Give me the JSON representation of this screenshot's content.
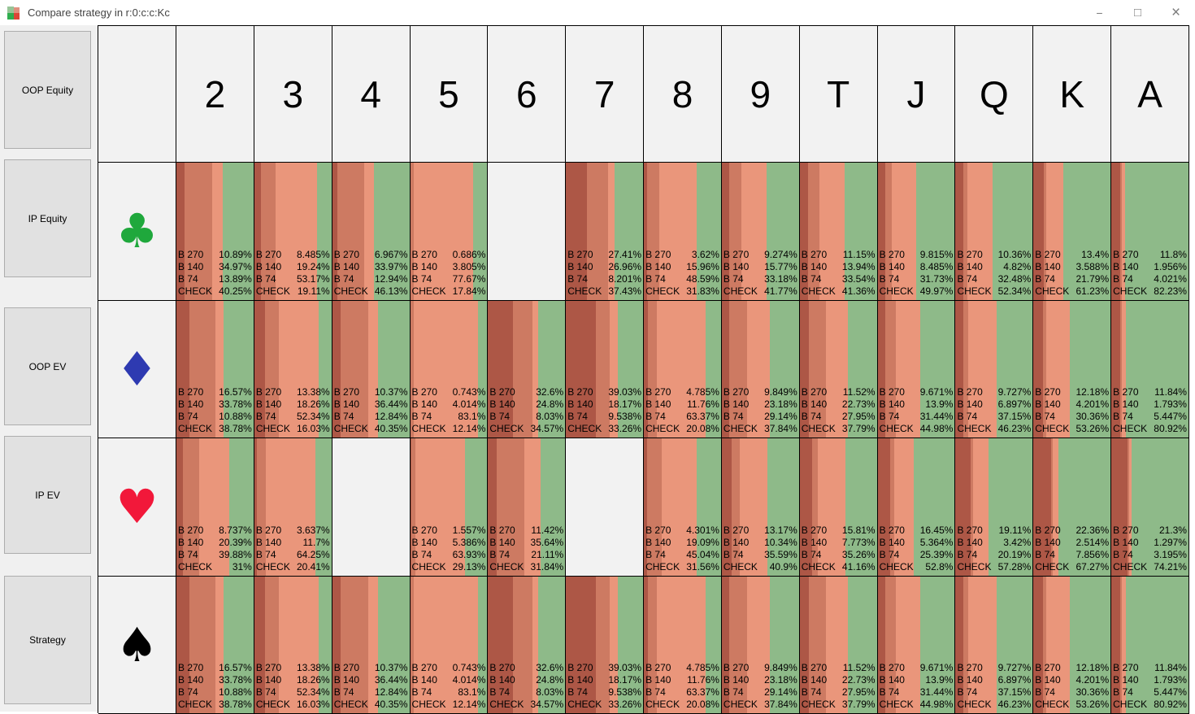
{
  "window": {
    "title": "Compare strategy in r:0:c:c:Kc",
    "controls": {
      "minimize": "−",
      "maximize": "□",
      "close": "×"
    }
  },
  "sidebar": {
    "buttons": [
      "OOP Equity",
      "IP Equity",
      "OOP EV",
      "IP EV",
      "Strategy"
    ]
  },
  "grid": {
    "columns": [
      "2",
      "3",
      "4",
      "5",
      "6",
      "7",
      "8",
      "9",
      "T",
      "J",
      "Q",
      "K",
      "A"
    ],
    "suits": [
      {
        "name": "club",
        "symbol": "♣",
        "color": "#1fa83c"
      },
      {
        "name": "diamond",
        "symbol": "♦",
        "color": "#2e3ab1"
      },
      {
        "name": "heart",
        "symbol": "♥",
        "color": "#f2183a"
      },
      {
        "name": "spade",
        "symbol": "♠",
        "color": "#000000"
      }
    ],
    "actions": [
      {
        "label": "B 270",
        "color": "#ad5746"
      },
      {
        "label": "B 140",
        "color": "#cd7a62"
      },
      {
        "label": "B 74",
        "color": "#ea967b"
      },
      {
        "label": "CHECK",
        "color": "#8eba89"
      }
    ],
    "cells": {
      "club": {
        "2": [
          "10.89%",
          "34.97%",
          "13.89%",
          "40.25%"
        ],
        "3": [
          "8.485%",
          "19.24%",
          "53.17%",
          "19.11%"
        ],
        "4": [
          "6.967%",
          "33.97%",
          "12.94%",
          "46.13%"
        ],
        "5": [
          "0.686%",
          "3.805%",
          "77.67%",
          "17.84%"
        ],
        "6": null,
        "7": [
          "27.41%",
          "26.96%",
          "8.201%",
          "37.43%"
        ],
        "8": [
          "3.62%",
          "15.96%",
          "48.59%",
          "31.83%"
        ],
        "9": [
          "9.274%",
          "15.77%",
          "33.18%",
          "41.77%"
        ],
        "T": [
          "11.15%",
          "13.94%",
          "33.54%",
          "41.36%"
        ],
        "J": [
          "9.815%",
          "8.485%",
          "31.73%",
          "49.97%"
        ],
        "Q": [
          "10.36%",
          "4.82%",
          "32.48%",
          "52.34%"
        ],
        "K": [
          "13.4%",
          "3.588%",
          "21.79%",
          "61.23%"
        ],
        "A": [
          "11.8%",
          "1.956%",
          "4.021%",
          "82.23%"
        ]
      },
      "diamond": {
        "2": [
          "16.57%",
          "33.78%",
          "10.88%",
          "38.78%"
        ],
        "3": [
          "13.38%",
          "18.26%",
          "52.34%",
          "16.03%"
        ],
        "4": [
          "10.37%",
          "36.44%",
          "12.84%",
          "40.35%"
        ],
        "5": [
          "0.743%",
          "4.014%",
          "83.1%",
          "12.14%"
        ],
        "6": [
          "32.6%",
          "24.8%",
          "8.03%",
          "34.57%"
        ],
        "7": [
          "39.03%",
          "18.17%",
          "9.538%",
          "33.26%"
        ],
        "8": [
          "4.785%",
          "11.76%",
          "63.37%",
          "20.08%"
        ],
        "9": [
          "9.849%",
          "23.18%",
          "29.14%",
          "37.84%"
        ],
        "T": [
          "11.52%",
          "22.73%",
          "27.95%",
          "37.79%"
        ],
        "J": [
          "9.671%",
          "13.9%",
          "31.44%",
          "44.98%"
        ],
        "Q": [
          "9.727%",
          "6.897%",
          "37.15%",
          "46.23%"
        ],
        "K": [
          "12.18%",
          "4.201%",
          "30.36%",
          "53.26%"
        ],
        "A": [
          "11.84%",
          "1.793%",
          "5.447%",
          "80.92%"
        ]
      },
      "heart": {
        "2": [
          "8.737%",
          "20.39%",
          "39.88%",
          "31%"
        ],
        "3": [
          "3.637%",
          "11.7%",
          "64.25%",
          "20.41%"
        ],
        "4": null,
        "5": [
          "1.557%",
          "5.386%",
          "63.93%",
          "29.13%"
        ],
        "6": [
          "11.42%",
          "35.64%",
          "21.11%",
          "31.84%"
        ],
        "7": null,
        "8": [
          "4.301%",
          "19.09%",
          "45.04%",
          "31.56%"
        ],
        "9": [
          "13.17%",
          "10.34%",
          "35.59%",
          "40.9%"
        ],
        "T": [
          "15.81%",
          "7.773%",
          "35.26%",
          "41.16%"
        ],
        "J": [
          "16.45%",
          "5.364%",
          "25.39%",
          "52.8%"
        ],
        "Q": [
          "19.11%",
          "3.42%",
          "20.19%",
          "57.28%"
        ],
        "K": [
          "22.36%",
          "2.514%",
          "7.856%",
          "67.27%"
        ],
        "A": [
          "21.3%",
          "1.297%",
          "3.195%",
          "74.21%"
        ]
      },
      "spade": {
        "2": [
          "16.57%",
          "33.78%",
          "10.88%",
          "38.78%"
        ],
        "3": [
          "13.38%",
          "18.26%",
          "52.34%",
          "16.03%"
        ],
        "4": [
          "10.37%",
          "36.44%",
          "12.84%",
          "40.35%"
        ],
        "5": [
          "0.743%",
          "4.014%",
          "83.1%",
          "12.14%"
        ],
        "6": [
          "32.6%",
          "24.8%",
          "8.03%",
          "34.57%"
        ],
        "7": [
          "39.03%",
          "18.17%",
          "9.538%",
          "33.26%"
        ],
        "8": [
          "4.785%",
          "11.76%",
          "63.37%",
          "20.08%"
        ],
        "9": [
          "9.849%",
          "23.18%",
          "29.14%",
          "37.84%"
        ],
        "T": [
          "11.52%",
          "22.73%",
          "27.95%",
          "37.79%"
        ],
        "J": [
          "9.671%",
          "13.9%",
          "31.44%",
          "44.98%"
        ],
        "Q": [
          "9.727%",
          "6.897%",
          "37.15%",
          "46.23%"
        ],
        "K": [
          "12.18%",
          "4.201%",
          "30.36%",
          "53.26%"
        ],
        "A": [
          "11.84%",
          "1.793%",
          "5.447%",
          "80.92%"
        ]
      }
    }
  }
}
